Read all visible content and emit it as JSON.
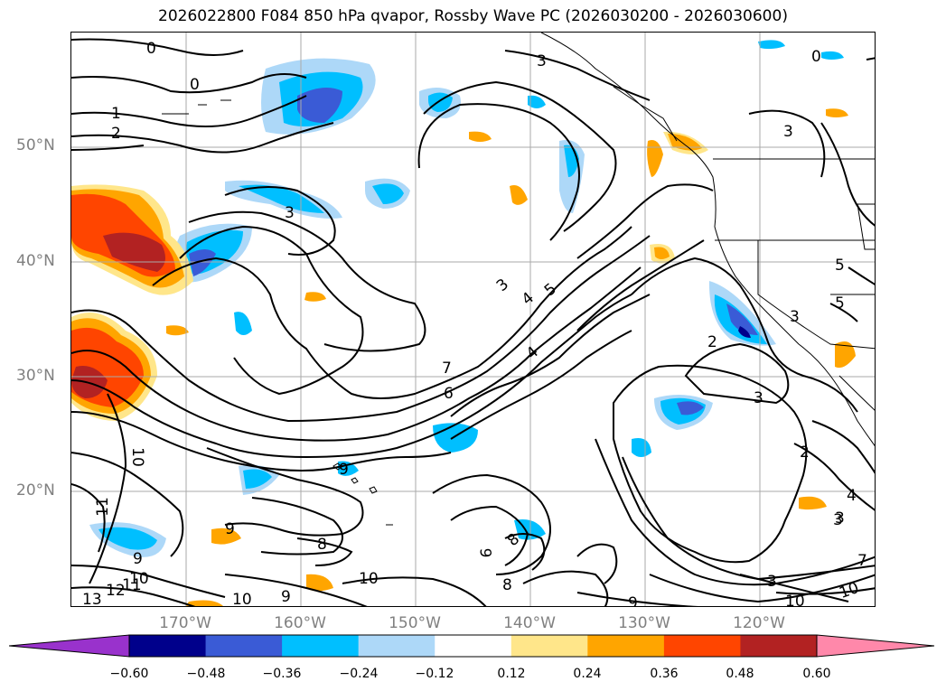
{
  "title": "2026022800 F084 850 hPa qvapor, Rossby Wave PC (2026030200 - 2026030600)",
  "lat_labels": [
    "50°N",
    "40°N",
    "30°N",
    "20°N"
  ],
  "lon_labels": [
    "170°W",
    "160°W",
    "150°W",
    "140°W",
    "130°W",
    "120°W"
  ],
  "colorbar": {
    "ticks": [
      "−0.60",
      "−0.48",
      "−0.36",
      "−0.24",
      "−0.12",
      "0.12",
      "0.24",
      "0.36",
      "0.48",
      "0.60"
    ],
    "colors": [
      "#9932cc",
      "#00008b",
      "#3a5bd6",
      "#00bfff",
      "#add8f8",
      "#ffffff",
      "#ffe68a",
      "#ffa500",
      "#ff4500",
      "#b22222",
      "#ff88aa"
    ]
  },
  "contour_labels": [
    "0",
    "0",
    "0",
    "1",
    "2",
    "3",
    "3",
    "3",
    "3",
    "3",
    "3",
    "3",
    "4",
    "5",
    "5",
    "5",
    "6",
    "7",
    "4",
    "2",
    "2",
    "3",
    "4",
    "3",
    "10",
    "11",
    "9",
    "9",
    "9",
    "8",
    "8",
    "9",
    "8",
    "10",
    "10",
    "12",
    "11",
    "13",
    "10",
    "9",
    "9",
    "10",
    "10",
    "7"
  ]
}
